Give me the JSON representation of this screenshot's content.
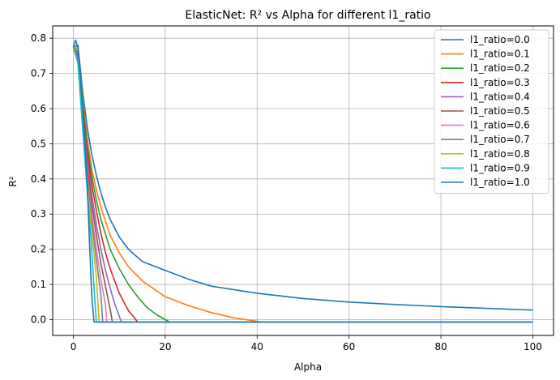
{
  "chart_data": {
    "type": "line",
    "title": "ElasticNet: R² vs Alpha for different l1_ratio",
    "xlabel": "Alpha",
    "ylabel": "R²",
    "xlim": [
      -4.5,
      104.5
    ],
    "ylim": [
      -0.045,
      0.835
    ],
    "xticks": [
      0,
      20,
      40,
      60,
      80,
      100
    ],
    "yticks": [
      0.0,
      0.1,
      0.2,
      0.3,
      0.4,
      0.5,
      0.6,
      0.7,
      0.8
    ],
    "grid": true,
    "legend_position": "top-right",
    "colors": [
      "#1f77b4",
      "#ff7f0e",
      "#2ca02c",
      "#d62728",
      "#9467bd",
      "#8c564b",
      "#e377c2",
      "#7f7f7f",
      "#bcbd22",
      "#17becf",
      "#1f77b4"
    ],
    "series": [
      {
        "name": "l1_ratio=0.0",
        "x": [
          0.01,
          1,
          2,
          3,
          4,
          5,
          6,
          7,
          8,
          10,
          12,
          15,
          20,
          25,
          30,
          40,
          50,
          60,
          70,
          80,
          90,
          100
        ],
        "y": [
          0.775,
          0.78,
          0.65,
          0.55,
          0.47,
          0.41,
          0.36,
          0.32,
          0.285,
          0.235,
          0.2,
          0.165,
          0.14,
          0.115,
          0.095,
          0.075,
          0.06,
          0.05,
          0.043,
          0.037,
          0.032,
          0.027
        ]
      },
      {
        "name": "l1_ratio=0.1",
        "x": [
          0.01,
          1,
          2,
          3,
          4,
          5,
          6,
          8,
          10,
          12,
          15,
          20,
          25,
          30,
          35,
          40,
          41,
          100
        ],
        "y": [
          0.775,
          0.77,
          0.63,
          0.52,
          0.43,
          0.37,
          0.32,
          0.24,
          0.19,
          0.15,
          0.11,
          0.065,
          0.04,
          0.02,
          0.005,
          -0.005,
          -0.007,
          -0.007
        ]
      },
      {
        "name": "l1_ratio=0.2",
        "x": [
          0.01,
          1,
          2,
          3,
          4,
          5,
          6,
          8,
          10,
          12,
          14,
          16,
          18,
          20,
          21,
          100
        ],
        "y": [
          0.775,
          0.76,
          0.62,
          0.5,
          0.41,
          0.34,
          0.285,
          0.2,
          0.145,
          0.1,
          0.065,
          0.035,
          0.015,
          0.0,
          -0.007,
          -0.007
        ]
      },
      {
        "name": "l1_ratio=0.3",
        "x": [
          0.01,
          1,
          2,
          3,
          4,
          5,
          6,
          7,
          8,
          10,
          12,
          13,
          14,
          100
        ],
        "y": [
          0.775,
          0.75,
          0.6,
          0.48,
          0.385,
          0.31,
          0.245,
          0.19,
          0.145,
          0.075,
          0.025,
          0.01,
          -0.007,
          -0.007
        ]
      },
      {
        "name": "l1_ratio=0.4",
        "x": [
          0.01,
          1,
          2,
          3,
          4,
          5,
          6,
          7,
          8,
          9,
          10,
          10.5,
          100
        ],
        "y": [
          0.775,
          0.745,
          0.59,
          0.46,
          0.355,
          0.27,
          0.2,
          0.14,
          0.09,
          0.045,
          0.01,
          -0.007,
          -0.007
        ]
      },
      {
        "name": "l1_ratio=0.5",
        "x": [
          0.01,
          1,
          2,
          3,
          4,
          5,
          6,
          7,
          8,
          8.5,
          100
        ],
        "y": [
          0.775,
          0.74,
          0.58,
          0.44,
          0.33,
          0.24,
          0.16,
          0.095,
          0.03,
          -0.007,
          -0.007
        ]
      },
      {
        "name": "l1_ratio=0.6",
        "x": [
          0.01,
          1,
          2,
          3,
          4,
          5,
          6,
          7,
          7.3,
          100
        ],
        "y": [
          0.775,
          0.735,
          0.57,
          0.42,
          0.3,
          0.2,
          0.115,
          0.04,
          -0.007,
          -0.007
        ]
      },
      {
        "name": "l1_ratio=0.7",
        "x": [
          0.01,
          1,
          2,
          3,
          4,
          5,
          6,
          6.4,
          100
        ],
        "y": [
          0.775,
          0.73,
          0.56,
          0.41,
          0.28,
          0.17,
          0.07,
          -0.007,
          -0.007
        ]
      },
      {
        "name": "l1_ratio=0.8",
        "x": [
          0.01,
          1,
          2,
          3,
          4,
          5,
          5.6,
          100
        ],
        "y": [
          0.775,
          0.73,
          0.55,
          0.39,
          0.25,
          0.12,
          -0.007,
          -0.007
        ]
      },
      {
        "name": "l1_ratio=0.9",
        "x": [
          0.01,
          1,
          2,
          3,
          4,
          4.6,
          5,
          100
        ],
        "y": [
          0.775,
          0.73,
          0.545,
          0.37,
          0.2,
          0.07,
          -0.007,
          -0.007
        ]
      },
      {
        "name": "l1_ratio=1.0",
        "x": [
          0.01,
          0.5,
          1,
          1.5,
          2,
          2.5,
          3,
          3.5,
          4,
          4.5,
          5,
          100
        ],
        "y": [
          0.775,
          0.795,
          0.77,
          0.7,
          0.6,
          0.5,
          0.39,
          0.22,
          0.07,
          -0.007,
          -0.007,
          -0.007
        ]
      }
    ]
  }
}
